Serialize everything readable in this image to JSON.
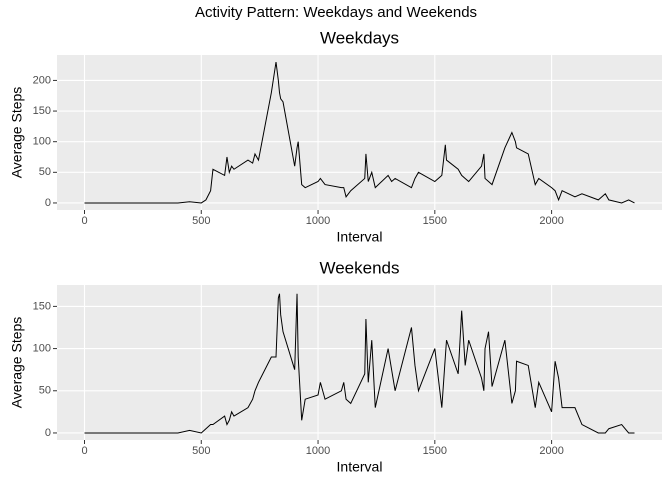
{
  "title": "Activity Pattern: Weekdays and Weekends",
  "chart_data": [
    {
      "type": "line",
      "title": "Weekdays",
      "x_label": "Interval",
      "y_label": "Average Steps",
      "color": "#000000",
      "grid": true,
      "x": [
        0,
        100,
        200,
        300,
        400,
        450,
        500,
        520,
        540,
        550,
        600,
        610,
        620,
        630,
        640,
        700,
        720,
        730,
        745,
        800,
        820,
        830,
        835,
        840,
        850,
        900,
        910,
        915,
        930,
        945,
        1000,
        1010,
        1030,
        1100,
        1110,
        1120,
        1140,
        1200,
        1205,
        1215,
        1230,
        1245,
        1300,
        1315,
        1330,
        1400,
        1415,
        1430,
        1500,
        1530,
        1545,
        1550,
        1600,
        1615,
        1630,
        1645,
        1700,
        1710,
        1715,
        1730,
        1745,
        1800,
        1830,
        1845,
        1850,
        1900,
        1930,
        1945,
        2000,
        2015,
        2030,
        2045,
        2100,
        2130,
        2200,
        2215,
        2230,
        2245,
        2300,
        2330,
        2355
      ],
      "values": [
        0,
        0,
        0,
        0,
        0,
        2,
        0,
        5,
        20,
        55,
        45,
        75,
        50,
        60,
        55,
        70,
        65,
        80,
        70,
        180,
        230,
        200,
        180,
        170,
        165,
        60,
        90,
        100,
        30,
        25,
        35,
        40,
        30,
        25,
        25,
        10,
        20,
        40,
        80,
        35,
        50,
        25,
        45,
        35,
        40,
        25,
        40,
        50,
        35,
        45,
        95,
        70,
        55,
        45,
        40,
        35,
        60,
        80,
        40,
        35,
        30,
        90,
        115,
        100,
        90,
        80,
        30,
        40,
        25,
        20,
        5,
        20,
        10,
        15,
        5,
        10,
        15,
        5,
        0,
        5,
        0
      ],
      "xlim": [
        -117.75,
        2472.75
      ],
      "xticks": [
        0,
        500,
        1000,
        1500,
        2000
      ],
      "ylim": [
        -11.5,
        241.5
      ],
      "yticks": [
        0,
        50,
        100,
        150,
        200
      ]
    },
    {
      "type": "line",
      "title": "Weekends",
      "x_label": "Interval",
      "y_label": "Average Steps",
      "color": "#000000",
      "grid": true,
      "x": [
        0,
        100,
        200,
        300,
        400,
        450,
        500,
        520,
        540,
        550,
        600,
        610,
        620,
        630,
        640,
        700,
        720,
        730,
        745,
        800,
        820,
        830,
        835,
        840,
        850,
        900,
        910,
        915,
        930,
        945,
        1000,
        1010,
        1030,
        1100,
        1110,
        1120,
        1140,
        1200,
        1205,
        1215,
        1230,
        1245,
        1300,
        1315,
        1330,
        1400,
        1415,
        1430,
        1500,
        1530,
        1545,
        1550,
        1600,
        1615,
        1630,
        1645,
        1700,
        1710,
        1715,
        1730,
        1745,
        1800,
        1830,
        1845,
        1850,
        1900,
        1930,
        1945,
        2000,
        2015,
        2030,
        2045,
        2100,
        2130,
        2200,
        2215,
        2230,
        2245,
        2300,
        2330,
        2355
      ],
      "values": [
        0,
        0,
        0,
        0,
        0,
        3,
        0,
        5,
        10,
        10,
        20,
        10,
        15,
        25,
        20,
        30,
        40,
        50,
        60,
        90,
        90,
        160,
        165,
        140,
        120,
        75,
        165,
        90,
        15,
        40,
        45,
        60,
        40,
        50,
        60,
        40,
        35,
        70,
        135,
        60,
        110,
        30,
        100,
        75,
        50,
        125,
        80,
        50,
        100,
        30,
        90,
        110,
        70,
        145,
        80,
        110,
        65,
        50,
        100,
        120,
        55,
        110,
        35,
        50,
        85,
        80,
        30,
        60,
        25,
        85,
        65,
        30,
        30,
        10,
        0,
        0,
        0,
        5,
        10,
        0,
        0
      ],
      "xlim": [
        -117.75,
        2472.75
      ],
      "xticks": [
        0,
        500,
        1000,
        1500,
        2000
      ],
      "ylim": [
        -8.35,
        175.35
      ],
      "yticks": [
        0,
        50,
        100,
        150
      ]
    }
  ]
}
